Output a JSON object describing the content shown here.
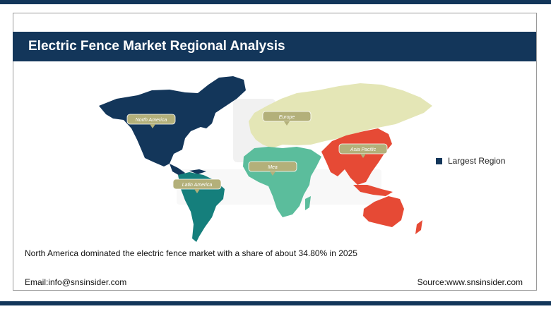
{
  "header": {
    "title": "Electric Fence Market Regional Analysis"
  },
  "map": {
    "regions": [
      {
        "id": "north_america",
        "label": "North America",
        "color": "#13365a",
        "largest": true
      },
      {
        "id": "europe",
        "label": "Europe",
        "color": "#e4e6b6",
        "largest": false
      },
      {
        "id": "asia_pacific",
        "label": "Asia Pacific",
        "color": "#e64a35",
        "largest": false
      },
      {
        "id": "mea",
        "label": "Mea",
        "color": "#5bbd9c",
        "largest": false
      },
      {
        "id": "latin_america",
        "label": "Latin America",
        "color": "#157f7c",
        "largest": false
      }
    ],
    "label_bubble_color": "#b3b07a"
  },
  "legend": {
    "label": "Largest Region",
    "color": "#13365a"
  },
  "caption": "North America dominated the electric fence market with a share of about 34.80% in 2025",
  "footer": {
    "email": "Email:info@snsinsider.com",
    "source": "Source:www.snsinsider.com"
  }
}
